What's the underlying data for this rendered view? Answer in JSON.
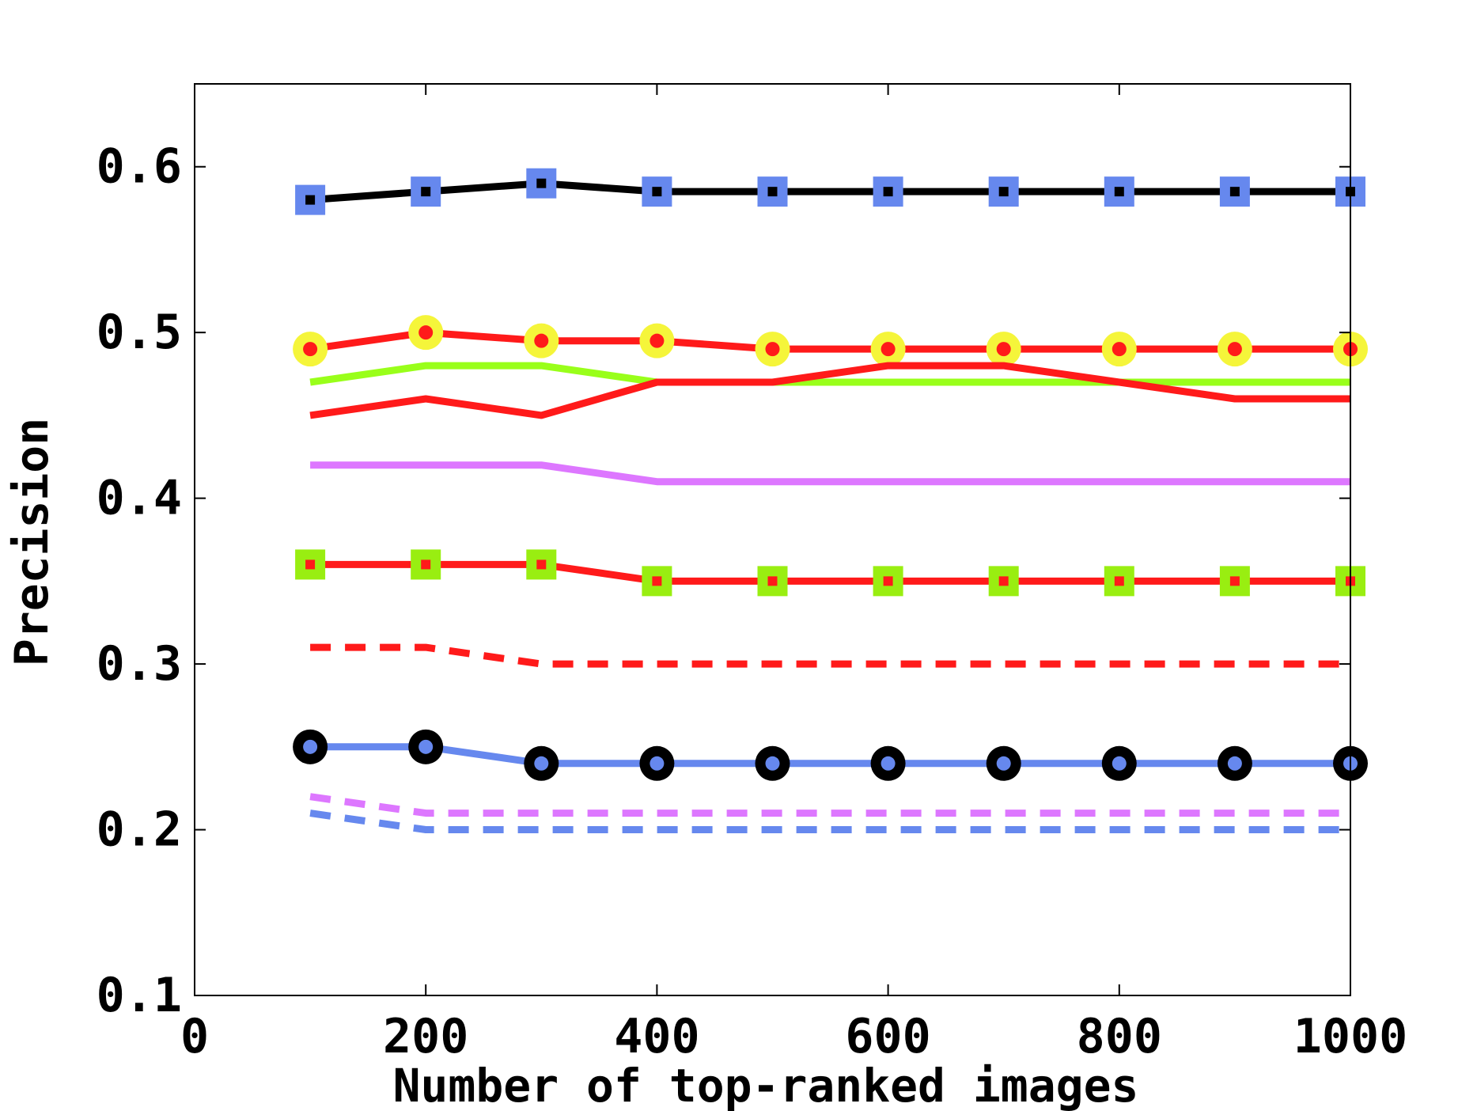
{
  "chart_data": {
    "type": "line",
    "title": "",
    "xlabel": "Number of top-ranked images",
    "ylabel": "Precision",
    "xlim": [
      0,
      1000
    ],
    "ylim": [
      0.1,
      0.65
    ],
    "xticks": [
      0,
      200,
      400,
      600,
      800,
      1000
    ],
    "xtick_labels": [
      "0",
      "200",
      "400",
      "600",
      "800",
      "1000"
    ],
    "yticks": [
      0.1,
      0.2,
      0.3,
      0.4,
      0.5,
      0.6
    ],
    "ytick_labels": [
      "0.1",
      "0.2",
      "0.3",
      "0.4",
      "0.5",
      "0.6"
    ],
    "grid": false,
    "legend": "none",
    "x": [
      100,
      200,
      300,
      400,
      500,
      600,
      700,
      800,
      900,
      1000
    ],
    "series": [
      {
        "values": [
          0.58,
          0.585,
          0.59,
          0.585,
          0.585,
          0.585,
          0.585,
          0.585,
          0.585,
          0.585
        ],
        "line_color": "#000000",
        "dash": "solid",
        "marker": "square",
        "marker_color": "#6688ee",
        "marker_center": "#000000"
      },
      {
        "values": [
          0.49,
          0.5,
          0.495,
          0.495,
          0.49,
          0.49,
          0.49,
          0.49,
          0.49,
          0.49
        ],
        "line_color": "#ff1a1a",
        "dash": "solid",
        "marker": "circle",
        "marker_color": "#f5f53a",
        "marker_center": "#ff1a1a"
      },
      {
        "values": [
          0.47,
          0.48,
          0.48,
          0.47,
          0.47,
          0.47,
          0.47,
          0.47,
          0.47,
          0.47
        ],
        "line_color": "#99ff1a",
        "dash": "solid",
        "marker": "none"
      },
      {
        "values": [
          0.45,
          0.46,
          0.45,
          0.47,
          0.47,
          0.48,
          0.48,
          0.47,
          0.46,
          0.46
        ],
        "line_color": "#ff1a1a",
        "dash": "solid",
        "marker": "none"
      },
      {
        "values": [
          0.42,
          0.42,
          0.42,
          0.41,
          0.41,
          0.41,
          0.41,
          0.41,
          0.41,
          0.41
        ],
        "line_color": "#dd77ff",
        "dash": "solid",
        "marker": "none"
      },
      {
        "values": [
          0.36,
          0.36,
          0.36,
          0.35,
          0.35,
          0.35,
          0.35,
          0.35,
          0.35,
          0.35
        ],
        "line_color": "#ff1a1a",
        "dash": "solid",
        "marker": "square",
        "marker_color": "#99ee11",
        "marker_center": "#ff1a1a"
      },
      {
        "values": [
          0.31,
          0.31,
          0.3,
          0.3,
          0.3,
          0.3,
          0.3,
          0.3,
          0.3,
          0.3
        ],
        "line_color": "#ff1a1a",
        "dash": "dashed",
        "marker": "none"
      },
      {
        "values": [
          0.25,
          0.25,
          0.24,
          0.24,
          0.24,
          0.24,
          0.24,
          0.24,
          0.24,
          0.24
        ],
        "line_color": "#6688ee",
        "dash": "solid",
        "marker": "circle",
        "marker_color": "#000000",
        "marker_center": "#6688ee"
      },
      {
        "values": [
          0.22,
          0.21,
          0.21,
          0.21,
          0.21,
          0.21,
          0.21,
          0.21,
          0.21,
          0.21
        ],
        "line_color": "#dd77ff",
        "dash": "dashed",
        "marker": "none"
      },
      {
        "values": [
          0.21,
          0.2,
          0.2,
          0.2,
          0.2,
          0.2,
          0.2,
          0.2,
          0.2,
          0.2
        ],
        "line_color": "#6688ee",
        "dash": "dashed",
        "marker": "none"
      }
    ]
  }
}
